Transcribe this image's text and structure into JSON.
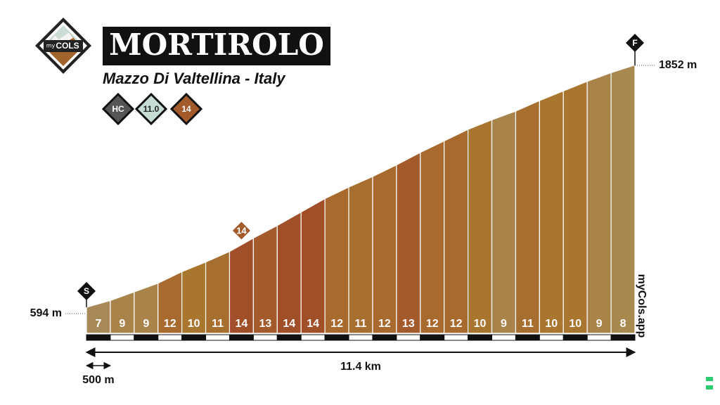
{
  "logo": {
    "top": "my",
    "main": "COLS"
  },
  "chart_data": {
    "type": "profile",
    "title": "MORTIROLO",
    "subtitle": "Mazzo Di Valtellina - Italy",
    "badges": [
      "HC",
      "11.0",
      "14"
    ],
    "values": [
      7,
      9,
      9,
      12,
      10,
      11,
      14,
      13,
      14,
      14,
      12,
      11,
      12,
      13,
      12,
      12,
      10,
      9,
      11,
      10,
      10,
      9,
      8
    ],
    "colors": [
      "#a88a58",
      "#a8844a",
      "#a8844a",
      "#a86a2e",
      "#a9762f",
      "#a76f2f",
      "#a14f29",
      "#a35b2b",
      "#a14f29",
      "#a14f29",
      "#a86a2e",
      "#a76f2f",
      "#a86a2e",
      "#a35b2b",
      "#a86a2e",
      "#a86a2e",
      "#a9762f",
      "#a8844a",
      "#a76f2f",
      "#a9762f",
      "#a9762f",
      "#a8844a",
      "#a8894f"
    ],
    "start_label": "S",
    "finish_label": "F",
    "start_elevation": {
      "value": 594,
      "label": "594 m"
    },
    "finish_elevation": {
      "value": 1852,
      "label": "1852 m"
    },
    "segment_length": {
      "value": 500,
      "label": "500 m"
    },
    "distance": {
      "value": 11.4,
      "label": "11.4 km"
    },
    "max_gradient": 14,
    "brand": "myCols.app"
  }
}
